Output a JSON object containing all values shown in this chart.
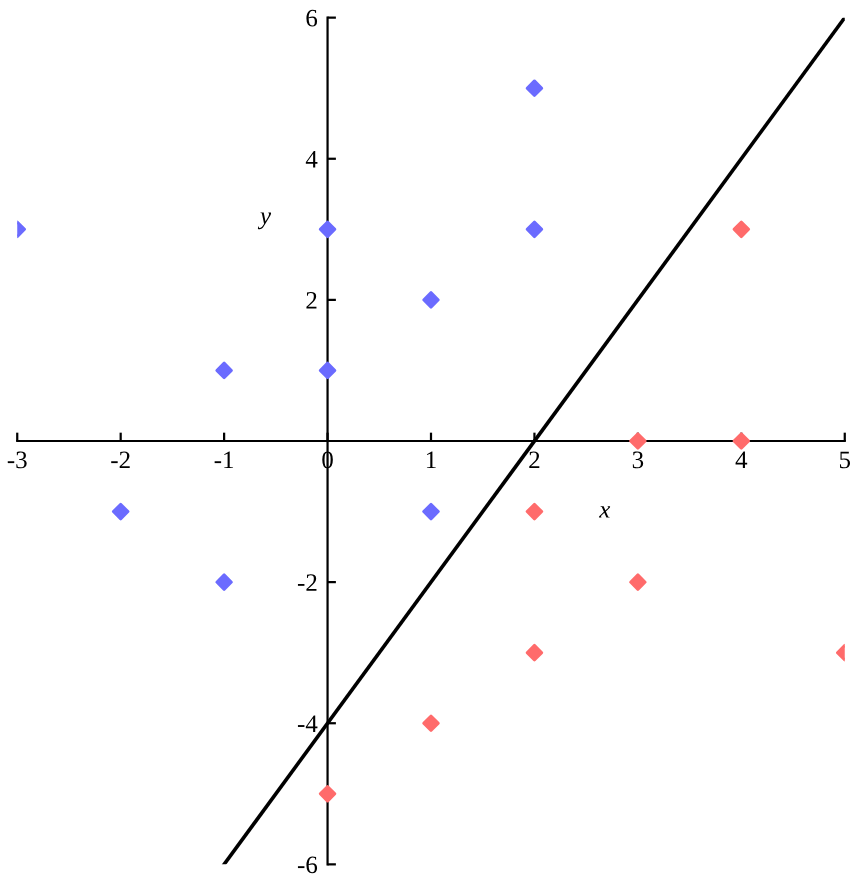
{
  "chart_data": {
    "type": "scatter",
    "xlabel": "x",
    "ylabel": "y",
    "marker": "diamond",
    "xlim": [
      -3,
      5
    ],
    "ylim": [
      -6,
      6
    ],
    "xticks": [
      -3,
      -2,
      -1,
      0,
      1,
      2,
      3,
      4,
      5
    ],
    "yticks": [
      -6,
      -4,
      -2,
      2,
      4,
      6
    ],
    "series": [
      {
        "color": "#6b6bff",
        "x": [
          -3,
          -2,
          -1,
          -1,
          0,
          0,
          1,
          1,
          2,
          2
        ],
        "values": [
          3,
          -1,
          1,
          -2,
          3,
          1,
          2,
          -1,
          5,
          3
        ]
      },
      {
        "color": "#ff6b6b",
        "x": [
          0,
          1,
          2,
          2,
          3,
          3,
          4,
          4,
          5
        ],
        "values": [
          -5,
          -4,
          -1,
          -3,
          0,
          -2,
          3,
          0,
          -3
        ]
      },
      {
        "type": "line",
        "marker": "none",
        "color": "#000000",
        "x": [
          -1,
          5
        ],
        "values": [
          -6,
          6
        ]
      }
    ]
  }
}
